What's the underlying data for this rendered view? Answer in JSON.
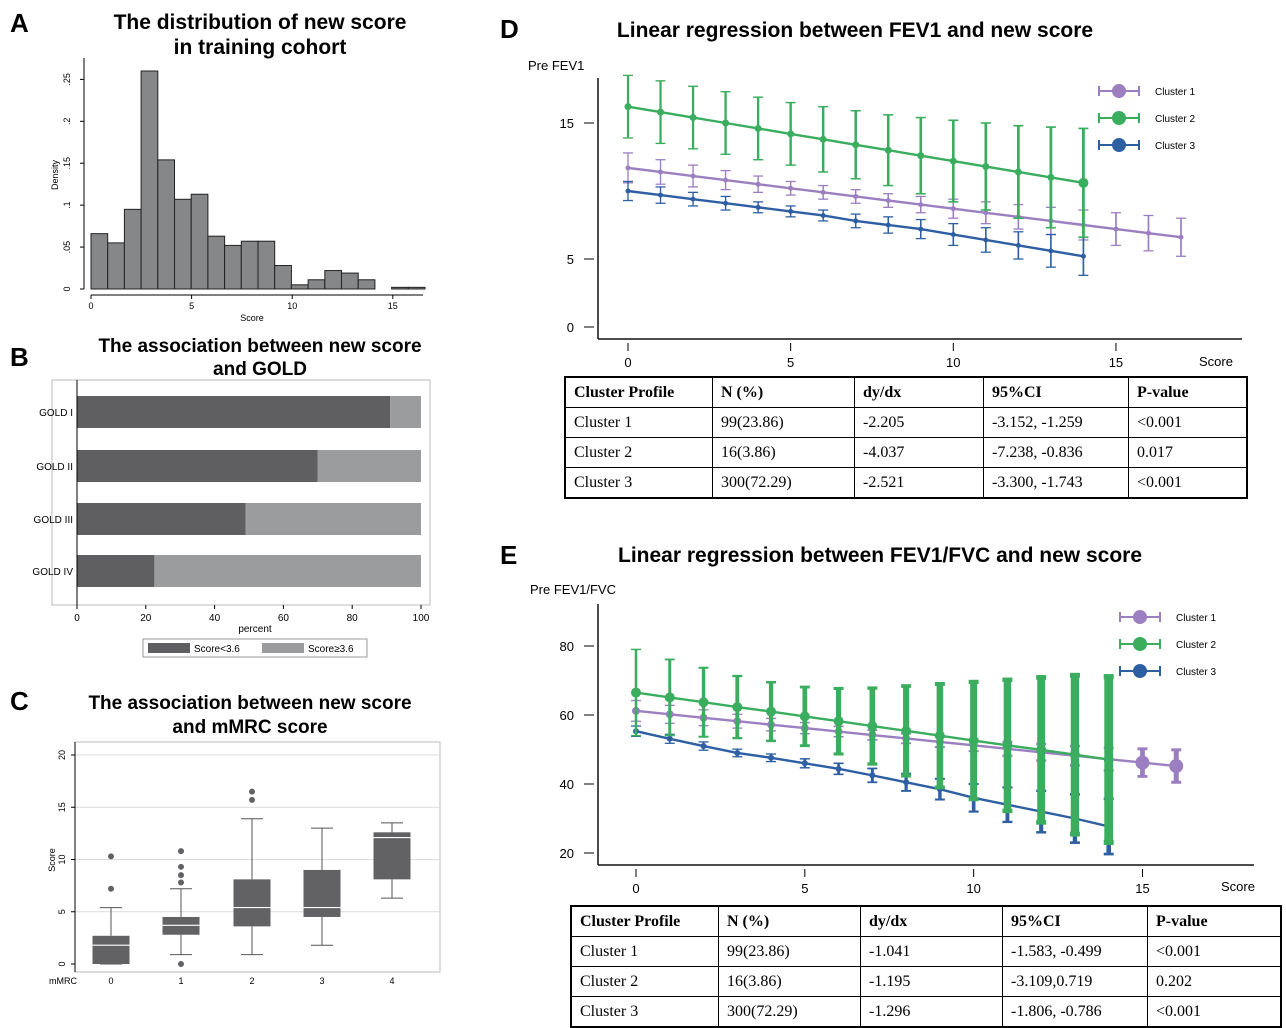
{
  "panels": {
    "A": {
      "letter": "A",
      "title": "The distribution of new score\nin training cohort"
    },
    "B": {
      "letter": "B",
      "title": "The association between new score\nand GOLD"
    },
    "C": {
      "letter": "C",
      "title": "The association between new score\nand mMRC score"
    },
    "D": {
      "letter": "D",
      "title": "Linear regression between  FEV1 and new score"
    },
    "E": {
      "letter": "E",
      "title": "Linear regression between  FEV1/FVC and new score"
    }
  },
  "chart_data": [
    {
      "id": "A",
      "type": "bar",
      "title": "The distribution of new score in training cohort",
      "xlabel": "Score",
      "ylabel": "Density",
      "xlim": [
        0,
        16.5
      ],
      "ylim": [
        0,
        0.26
      ],
      "xticks": [
        0,
        5,
        10,
        15
      ],
      "yticks": [
        0,
        0.05,
        0.1,
        0.15,
        0.2,
        0.25
      ],
      "ytick_labels": [
        "0",
        ".05",
        ".1",
        ".15",
        ".2",
        ".25"
      ],
      "bin_width": 0.83,
      "bin_starts": [
        0,
        0.83,
        1.66,
        2.49,
        3.32,
        4.15,
        4.98,
        5.81,
        6.64,
        7.47,
        8.3,
        9.13,
        9.96,
        10.79,
        11.62,
        12.45,
        13.28,
        14.94,
        15.77
      ],
      "values": [
        0.066,
        0.055,
        0.095,
        0.26,
        0.154,
        0.107,
        0.113,
        0.063,
        0.052,
        0.057,
        0.057,
        0.028,
        0.005,
        0.011,
        0.022,
        0.019,
        0.011,
        0.002,
        0.002
      ]
    },
    {
      "id": "B",
      "type": "bar",
      "orientation": "horizontal",
      "stacked": true,
      "title": "The association between new score and GOLD",
      "xlabel": "percent",
      "xlim": [
        0,
        100
      ],
      "xticks": [
        0,
        20,
        40,
        60,
        80,
        100
      ],
      "categories": [
        "GOLD I",
        "GOLD II",
        "GOLD III",
        "GOLD IV"
      ],
      "series": [
        {
          "name": "Score<3.6",
          "values": [
            91,
            70,
            49,
            22.5
          ],
          "color": "#5f5f62"
        },
        {
          "name": "Score≥3.6",
          "values": [
            9,
            30,
            51,
            77.5
          ],
          "color": "#9a9c9e"
        }
      ],
      "legend_position": "bottom"
    },
    {
      "id": "C",
      "type": "box",
      "title": "The association between new score and mMRC score",
      "xlabel": "mMRC",
      "ylabel": "Score",
      "ylim": [
        0,
        20
      ],
      "yticks": [
        0,
        5,
        10,
        15,
        20
      ],
      "categories": [
        "0",
        "1",
        "2",
        "3",
        "4"
      ],
      "boxes": [
        {
          "min": 0,
          "q1": 0,
          "median": 1.8,
          "q3": 2.7,
          "max": 5.4,
          "outliers": [
            7.2,
            10.3
          ]
        },
        {
          "min": 0.9,
          "q1": 2.8,
          "median": 3.7,
          "q3": 4.5,
          "max": 7.2,
          "outliers": [
            0,
            7.8,
            8.5,
            9.3,
            10.8
          ]
        },
        {
          "min": 0.9,
          "q1": 3.6,
          "median": 5.4,
          "q3": 8.1,
          "max": 13.9,
          "outliers": [
            15.7,
            16.5
          ]
        },
        {
          "min": 1.8,
          "q1": 4.5,
          "median": 5.4,
          "q3": 9.0,
          "max": 13.0,
          "outliers": []
        },
        {
          "min": 6.3,
          "q1": 8.1,
          "median": 12.1,
          "q3": 12.6,
          "max": 13.5,
          "outliers": []
        }
      ],
      "grid": true
    },
    {
      "id": "D",
      "type": "line",
      "title": "Linear regression between  FEV1 and new score",
      "xlabel": "Score",
      "ylabel": "Pre FEV1",
      "xlim": [
        0,
        17
      ],
      "ylim": [
        0,
        18
      ],
      "xticks": [
        0,
        5,
        10,
        15
      ],
      "yticks": [
        0,
        5,
        15
      ],
      "series": [
        {
          "name": "Cluster 1",
          "color": "#9b7fc0",
          "x": [
            0,
            1,
            2,
            3,
            4,
            5,
            6,
            7,
            8,
            9,
            10,
            11,
            12,
            13,
            14,
            15,
            16,
            17
          ],
          "y": [
            11.7,
            11.4,
            11.1,
            10.8,
            10.5,
            10.2,
            9.9,
            9.6,
            9.3,
            9.0,
            8.7,
            8.4,
            8.1,
            7.8,
            7.5,
            7.2,
            6.9,
            6.6
          ],
          "err": [
            1.1,
            0.9,
            0.8,
            0.7,
            0.6,
            0.5,
            0.5,
            0.5,
            0.5,
            0.6,
            0.7,
            0.8,
            0.9,
            1.0,
            1.1,
            1.2,
            1.3,
            1.4
          ]
        },
        {
          "name": "Cluster 2",
          "color": "#3aad5e",
          "x": [
            0,
            1,
            2,
            3,
            4,
            5,
            6,
            7,
            8,
            9,
            10,
            11,
            12,
            13,
            14
          ],
          "y": [
            16.2,
            15.8,
            15.4,
            15.0,
            14.6,
            14.2,
            13.8,
            13.4,
            13.0,
            12.6,
            12.2,
            11.8,
            11.4,
            11.0,
            10.6
          ],
          "err": [
            2.3,
            2.3,
            2.3,
            2.3,
            2.3,
            2.3,
            2.4,
            2.5,
            2.6,
            2.8,
            3.0,
            3.2,
            3.4,
            3.7,
            4.0
          ]
        },
        {
          "name": "Cluster 3",
          "color": "#2e5fa3",
          "x": [
            0,
            1,
            2,
            3,
            4,
            5,
            6,
            7,
            8,
            9,
            10,
            11,
            12,
            13,
            14
          ],
          "y": [
            10.0,
            9.7,
            9.4,
            9.1,
            8.8,
            8.5,
            8.2,
            7.8,
            7.5,
            7.2,
            6.8,
            6.4,
            6.0,
            5.6,
            5.2
          ],
          "err": [
            0.7,
            0.6,
            0.5,
            0.5,
            0.4,
            0.4,
            0.4,
            0.5,
            0.6,
            0.7,
            0.8,
            0.9,
            1.0,
            1.2,
            1.4
          ]
        }
      ],
      "legend_position": "top-right"
    },
    {
      "id": "E",
      "type": "line",
      "title": "Linear regression between  FEV1/FVC and new score",
      "xlabel": "Score",
      "ylabel": "Pre FEV1/FVC",
      "xlim": [
        0,
        17
      ],
      "ylim": [
        17,
        95
      ],
      "xticks": [
        0,
        5,
        10,
        15
      ],
      "yticks": [
        20,
        40,
        60,
        80
      ],
      "series": [
        {
          "name": "Cluster 1",
          "color": "#9b7fc0",
          "x": [
            0,
            1,
            2,
            3,
            4,
            5,
            6,
            7,
            8,
            9,
            10,
            11,
            12,
            13,
            14,
            15,
            16
          ],
          "y": [
            61.2,
            60.2,
            59.2,
            58.2,
            57.2,
            56.2,
            55.2,
            54.2,
            53.2,
            52.2,
            51.2,
            50.2,
            49.2,
            48.2,
            47.2,
            46.2,
            45.2
          ],
          "err": [
            3.0,
            2.6,
            2.3,
            2.0,
            1.8,
            1.6,
            1.5,
            1.4,
            1.4,
            1.5,
            1.7,
            2.0,
            2.4,
            2.8,
            3.3,
            4.0,
            4.7
          ]
        },
        {
          "name": "Cluster 2",
          "color": "#3aad5e",
          "x": [
            0,
            1,
            2,
            3,
            4,
            5,
            6,
            7,
            8,
            9,
            10,
            11,
            12,
            13,
            14
          ],
          "y": [
            66.5,
            65.1,
            63.7,
            62.3,
            61.0,
            59.6,
            58.2,
            56.8,
            55.4,
            54.0,
            52.6,
            51.2,
            49.9,
            48.5,
            47.1
          ],
          "err": [
            12.5,
            11,
            10,
            9,
            8.5,
            8.5,
            9.5,
            11,
            13,
            15,
            17,
            19,
            21,
            23,
            24
          ]
        },
        {
          "name": "Cluster 3",
          "color": "#2e5fa3",
          "x": [
            0,
            1,
            2,
            3,
            4,
            5,
            6,
            7,
            8,
            9,
            10,
            11,
            12,
            13,
            14
          ],
          "y": [
            55.3,
            53.1,
            51.0,
            49.0,
            47.6,
            46.0,
            44.4,
            42.5,
            40.5,
            38.5,
            36.0,
            34.0,
            32.0,
            30.0,
            27.7
          ],
          "err": [
            1.5,
            1.3,
            1.2,
            1.1,
            1.1,
            1.3,
            1.6,
            2.0,
            2.5,
            3.0,
            4.0,
            5.0,
            6.0,
            7.0,
            8.0
          ]
        }
      ],
      "legend_position": "top-right"
    }
  ],
  "tables": {
    "D": {
      "headers": [
        "Cluster Profile",
        "N (%)",
        "dy/dx",
        "95%CI",
        "P-value"
      ],
      "rows": [
        [
          "Cluster 1",
          "99(23.86)",
          "-2.205",
          "-3.152, -1.259",
          "<0.001"
        ],
        [
          "Cluster 2",
          "16(3.86)",
          "-4.037",
          "-7.238, -0.836",
          "0.017"
        ],
        [
          "Cluster 3",
          "300(72.29)",
          "-2.521",
          "-3.300, -1.743",
          "<0.001"
        ]
      ]
    },
    "E": {
      "headers": [
        "Cluster Profile",
        "N (%)",
        "dy/dx",
        "95%CI",
        "P-value"
      ],
      "rows": [
        [
          "Cluster 1",
          "99(23.86)",
          "-1.041",
          "-1.583, -0.499",
          "<0.001"
        ],
        [
          "Cluster 2",
          "16(3.86)",
          "-1.195",
          "-3.109,0.719",
          "0.202"
        ],
        [
          "Cluster 3",
          "300(72.29)",
          "-1.296",
          "-1.806, -0.786",
          "<0.001"
        ]
      ]
    }
  }
}
